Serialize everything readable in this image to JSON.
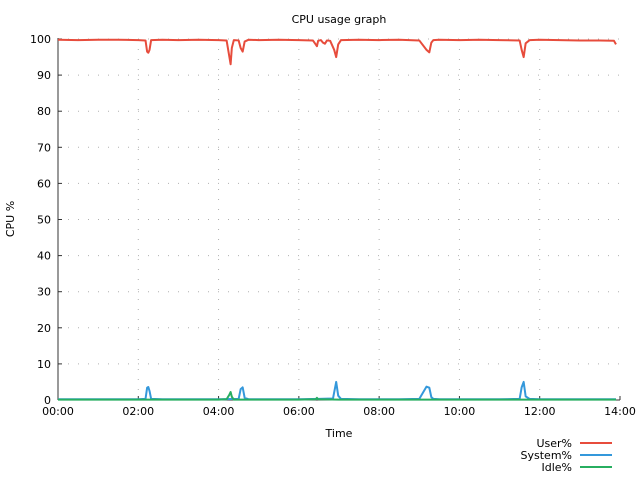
{
  "chart_data": {
    "type": "line",
    "title": "CPU usage graph",
    "xlabel": "Time",
    "ylabel": "CPU %",
    "xlim_hours": [
      0,
      14
    ],
    "ylim": [
      0,
      100
    ],
    "grid": true,
    "legend_position": "bottom-right",
    "x_ticks": [
      "00:00",
      "02:00",
      "04:00",
      "06:00",
      "08:00",
      "10:00",
      "12:00",
      "14:00"
    ],
    "y_ticks": [
      0,
      10,
      20,
      30,
      40,
      50,
      60,
      70,
      80,
      90,
      100
    ],
    "series": [
      {
        "name": "User%",
        "color": "#e74c3c",
        "x": [
          0,
          0.5,
          1.0,
          1.5,
          2.0,
          2.18,
          2.22,
          2.25,
          2.28,
          2.32,
          2.6,
          3.0,
          3.5,
          4.0,
          4.2,
          4.27,
          4.3,
          4.33,
          4.38,
          4.5,
          4.55,
          4.6,
          4.65,
          4.75,
          5.0,
          5.5,
          6.0,
          6.35,
          6.42,
          6.45,
          6.48,
          6.55,
          6.6,
          6.65,
          6.7,
          6.78,
          6.88,
          6.93,
          6.98,
          7.05,
          7.5,
          8.0,
          8.5,
          9.0,
          9.18,
          9.25,
          9.3,
          9.35,
          9.5,
          10.0,
          10.5,
          11.0,
          11.5,
          11.55,
          11.6,
          11.65,
          11.75,
          12.0,
          12.5,
          13.0,
          13.5,
          13.85,
          13.9
        ],
        "values": [
          99.8,
          99.7,
          99.8,
          99.8,
          99.7,
          99.6,
          96.5,
          96.2,
          97.0,
          99.7,
          99.8,
          99.7,
          99.8,
          99.7,
          99.6,
          95.0,
          93.0,
          97.5,
          99.7,
          99.6,
          97.5,
          96.5,
          99.3,
          99.8,
          99.7,
          99.8,
          99.7,
          99.6,
          98.5,
          98.0,
          99.5,
          99.7,
          99.0,
          98.7,
          99.6,
          99.5,
          97.0,
          95.0,
          98.5,
          99.7,
          99.8,
          99.7,
          99.8,
          99.6,
          97.0,
          96.3,
          99.0,
          99.7,
          99.8,
          99.7,
          99.8,
          99.7,
          99.6,
          97.0,
          95.0,
          98.8,
          99.7,
          99.8,
          99.7,
          99.6,
          99.6,
          99.5,
          98.5
        ]
      },
      {
        "name": "System%",
        "color": "#3498db",
        "x": [
          0,
          0.5,
          1.0,
          1.5,
          2.0,
          2.18,
          2.22,
          2.25,
          2.28,
          2.32,
          2.6,
          3.0,
          3.5,
          4.0,
          4.5,
          4.55,
          4.6,
          4.65,
          4.75,
          5.0,
          5.5,
          6.0,
          6.5,
          6.85,
          6.93,
          6.98,
          7.05,
          7.5,
          8.0,
          8.5,
          9.0,
          9.18,
          9.25,
          9.3,
          9.35,
          9.5,
          10.0,
          10.5,
          11.0,
          11.5,
          11.55,
          11.6,
          11.65,
          11.75,
          12.0,
          12.5,
          13.0,
          13.5,
          13.9
        ],
        "values": [
          0.2,
          0.2,
          0.2,
          0.2,
          0.2,
          0.3,
          3.4,
          3.6,
          2.5,
          0.3,
          0.2,
          0.2,
          0.2,
          0.2,
          0.3,
          3.0,
          3.5,
          0.6,
          0.2,
          0.2,
          0.2,
          0.2,
          0.3,
          0.4,
          5.0,
          1.2,
          0.3,
          0.2,
          0.2,
          0.2,
          0.3,
          3.7,
          3.4,
          0.8,
          0.3,
          0.2,
          0.2,
          0.2,
          0.2,
          0.3,
          3.5,
          5.0,
          1.0,
          0.3,
          0.2,
          0.2,
          0.2,
          0.2,
          0.2
        ]
      },
      {
        "name": "Idle%",
        "color": "#27ae60",
        "x": [
          0,
          0.5,
          1.0,
          1.5,
          2.0,
          2.5,
          3.0,
          3.5,
          4.0,
          4.2,
          4.27,
          4.3,
          4.33,
          4.38,
          4.6,
          5.0,
          5.5,
          6.0,
          6.42,
          6.45,
          6.48,
          7.0,
          7.5,
          8.0,
          8.5,
          9.0,
          9.5,
          10.0,
          10.5,
          11.0,
          11.5,
          12.0,
          12.5,
          13.0,
          13.5,
          13.9
        ],
        "values": [
          0.1,
          0.1,
          0.1,
          0.1,
          0.1,
          0.1,
          0.1,
          0.1,
          0.1,
          0.2,
          1.5,
          2.2,
          0.9,
          0.1,
          0.1,
          0.1,
          0.1,
          0.1,
          0.2,
          0.6,
          0.2,
          0.1,
          0.1,
          0.1,
          0.1,
          0.1,
          0.1,
          0.1,
          0.1,
          0.1,
          0.1,
          0.1,
          0.1,
          0.1,
          0.1,
          0.1
        ]
      }
    ]
  }
}
